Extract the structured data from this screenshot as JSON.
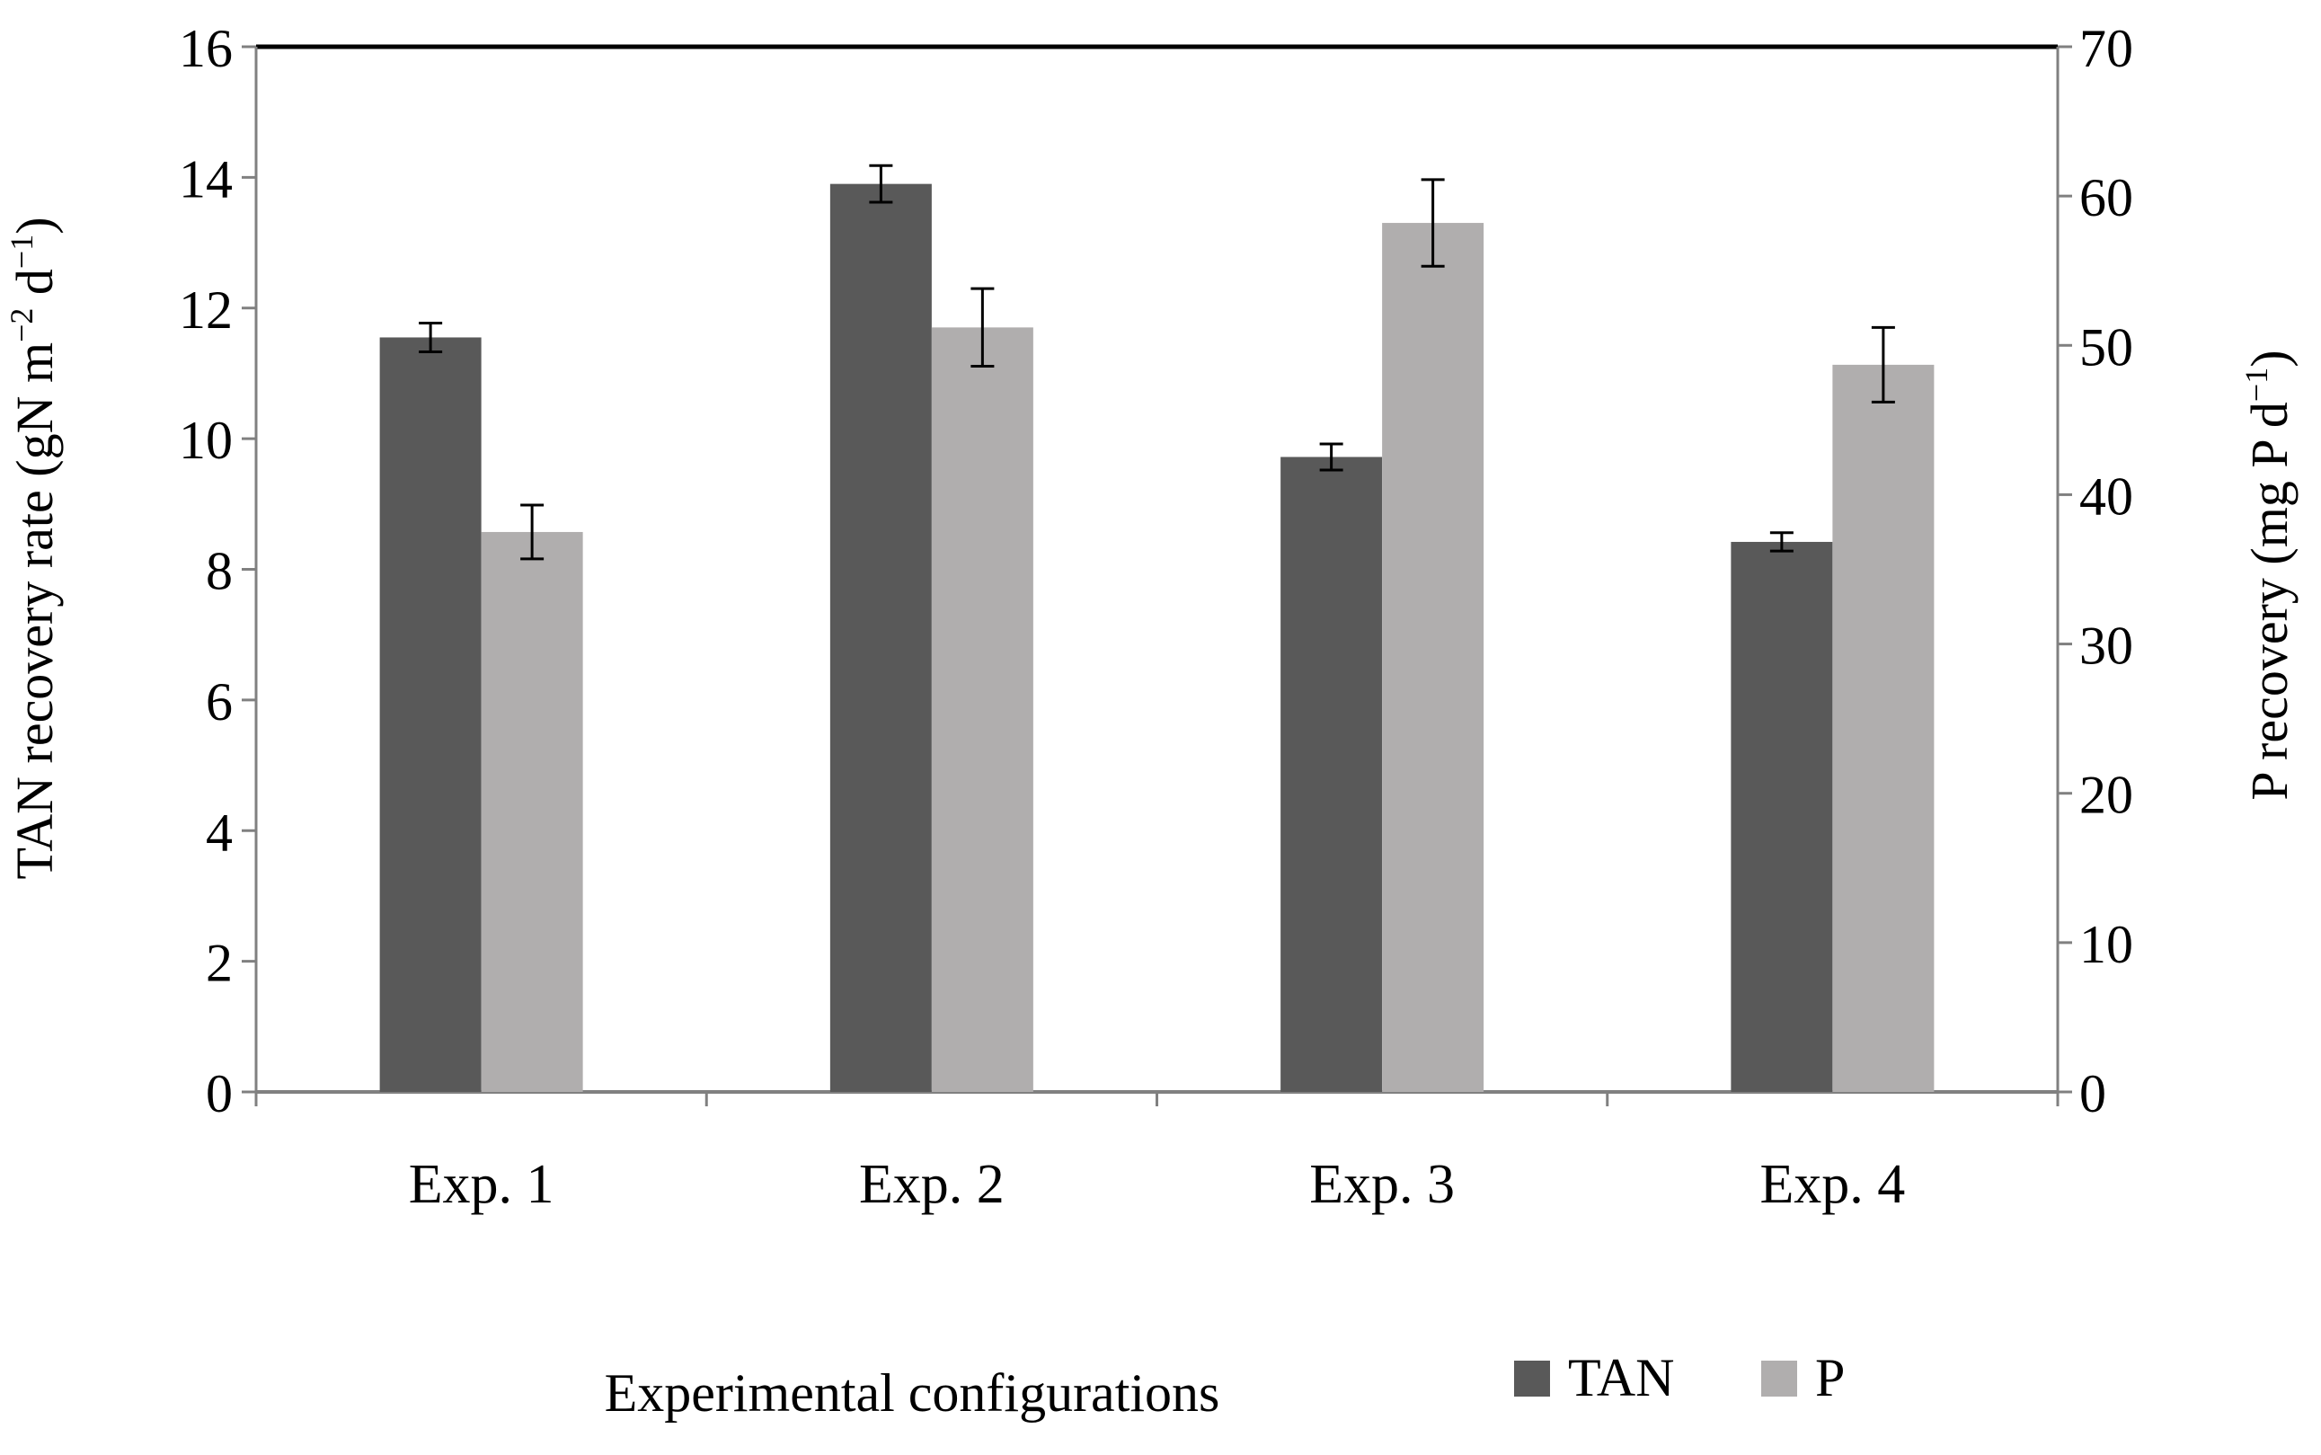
{
  "chart_data": {
    "type": "bar",
    "categories": [
      "Exp. 1",
      "Exp. 2",
      "Exp. 3",
      "Exp. 4"
    ],
    "xlabel": "Experimental configurations",
    "y_left": {
      "label_main": "TAN recovery rate (gN  m",
      "label_sup1": "−2",
      "label_mid": " d",
      "label_sup2": "−1",
      "label_end": ")",
      "ylim": [
        0,
        16
      ],
      "ticks": [
        0,
        2,
        4,
        6,
        8,
        10,
        12,
        14,
        16
      ]
    },
    "y_right": {
      "label_main": "P recovery (mg P d",
      "label_sup": "−1",
      "label_end": ")",
      "ylim": [
        0,
        70
      ],
      "ticks": [
        0,
        10,
        20,
        30,
        40,
        50,
        60,
        70
      ]
    },
    "series": [
      {
        "name": "TAN",
        "axis": "left",
        "color": "#595959",
        "values": [
          11.55,
          13.9,
          9.72,
          8.42
        ],
        "errors": [
          0.22,
          0.28,
          0.2,
          0.14
        ]
      },
      {
        "name": "P",
        "axis": "right",
        "color": "#b0aeae",
        "values": [
          37.5,
          51.2,
          58.2,
          48.7
        ],
        "errors": [
          1.8,
          2.6,
          2.9,
          2.5
        ]
      }
    ],
    "legend": {
      "position": "bottom-right"
    }
  }
}
